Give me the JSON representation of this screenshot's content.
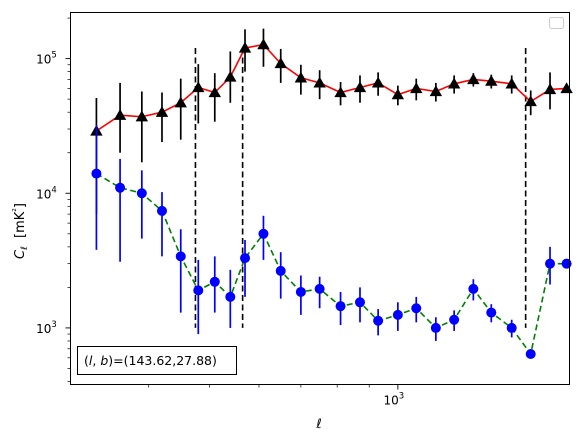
{
  "chart_data": {
    "type": "line",
    "title": "",
    "xlabel": "ℓ",
    "ylabel": "Cℓ  [mK²]",
    "xscale": "log",
    "yscale": "log",
    "xlim": [
      300,
      1880
    ],
    "ylim": [
      380,
      220000
    ],
    "x_major_tick_labels": [
      {
        "value": 1000,
        "label": "10",
        "exponent": "3"
      }
    ],
    "y_major_tick_labels": [
      {
        "value": 1000,
        "label": "10",
        "exponent": "3"
      },
      {
        "value": 10000,
        "label": "10",
        "exponent": "4"
      },
      {
        "value": 100000,
        "label": "10",
        "exponent": "5"
      }
    ],
    "grid": false,
    "legend": {
      "placement": "top-right",
      "entries": []
    },
    "annotation": "(l, b)=(143.62,27.88)",
    "vlines": [
      475,
      565,
      1600
    ],
    "vline_range": [
      1000,
      120000
    ],
    "series": [
      {
        "color": "#000000",
        "line_color": "#ff0000",
        "line_style": "solid",
        "marker": "triangle",
        "errorbar_color": "#000000",
        "x": [
          330,
          360,
          390,
          420,
          450,
          480,
          510,
          540,
          570,
          610,
          650,
          700,
          750,
          810,
          870,
          930,
          1000,
          1070,
          1150,
          1230,
          1320,
          1410,
          1520,
          1630,
          1750,
          1860
        ],
        "y": [
          29000,
          38000,
          37000,
          40000,
          47000,
          61000,
          56000,
          73000,
          120000,
          127000,
          92000,
          72000,
          66000,
          56000,
          61000,
          66000,
          54000,
          60000,
          57000,
          65000,
          70000,
          68000,
          65000,
          48000,
          59000,
          60000
        ],
        "yerr_low": [
          22000,
          18000,
          20000,
          16000,
          22000,
          28000,
          22000,
          26000,
          40000,
          40000,
          26000,
          18000,
          16000,
          11000,
          14000,
          13000,
          9000,
          11000,
          9000,
          10000,
          8000,
          8000,
          10000,
          10000,
          17000,
          0
        ],
        "yerr_high": [
          22000,
          28000,
          20000,
          16000,
          24000,
          30000,
          22000,
          40000,
          45000,
          40000,
          26000,
          18000,
          16000,
          11000,
          14000,
          13000,
          9000,
          11000,
          9000,
          10000,
          8000,
          8000,
          10000,
          10000,
          20000,
          0
        ]
      },
      {
        "color": "#0000ff",
        "line_color": "#008000",
        "line_style": "dashed",
        "marker": "circle",
        "errorbar_color": "#0000ff",
        "x": [
          330,
          360,
          390,
          420,
          450,
          480,
          510,
          540,
          570,
          610,
          650,
          700,
          750,
          810,
          870,
          930,
          1000,
          1070,
          1150,
          1230,
          1320,
          1410,
          1520,
          1630,
          1750,
          1860
        ],
        "y": [
          14000,
          11000,
          10000,
          7400,
          3400,
          1900,
          2200,
          1700,
          3300,
          5000,
          2650,
          1850,
          1950,
          1450,
          1550,
          1130,
          1250,
          1400,
          1000,
          1150,
          1950,
          1300,
          1000,
          640,
          3000,
          3000
        ],
        "yerr_low": [
          10200,
          7900,
          5400,
          4000,
          2100,
          1000,
          900,
          700,
          1600,
          1800,
          1000,
          600,
          550,
          400,
          450,
          250,
          300,
          300,
          200,
          200,
          350,
          200,
          150,
          0,
          900,
          0
        ],
        "yerr_high": [
          18000,
          7000,
          4800,
          2800,
          2000,
          1300,
          1200,
          1000,
          1200,
          1800,
          1000,
          600,
          450,
          400,
          450,
          250,
          300,
          300,
          200,
          200,
          350,
          200,
          150,
          0,
          1000,
          0
        ]
      }
    ]
  }
}
